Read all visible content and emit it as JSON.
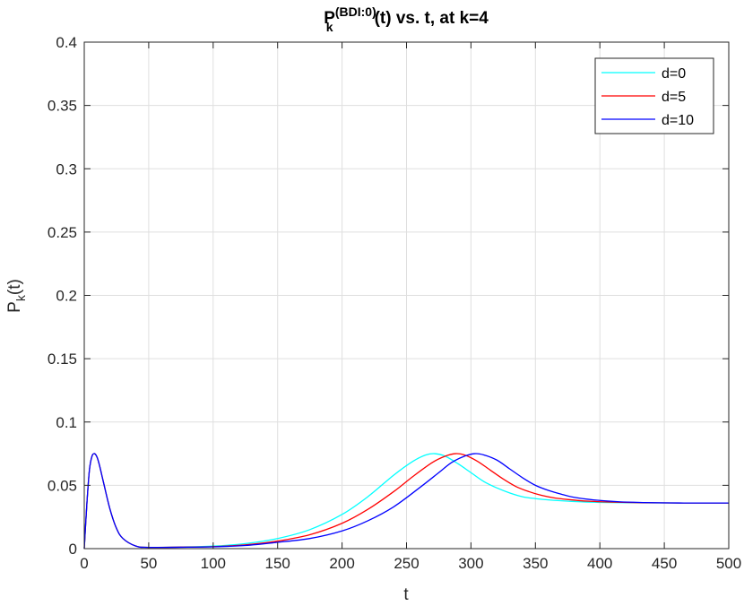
{
  "chart_data": {
    "type": "line",
    "title": {
      "main": "P",
      "sup": "(BDI:0)",
      "sub": "k",
      "rest": "(t) vs. t, at k=4"
    },
    "xlabel": "t",
    "ylabel": {
      "main": "P",
      "sub": "k",
      "rest": "(t)"
    },
    "xlim": [
      0,
      500
    ],
    "ylim": [
      0,
      0.4
    ],
    "xticks": [
      0,
      50,
      100,
      150,
      200,
      250,
      300,
      350,
      400,
      450,
      500
    ],
    "xtick_labels": [
      "0",
      "50",
      "100",
      "150",
      "200",
      "250",
      "300",
      "350",
      "400",
      "450",
      "500"
    ],
    "yticks": [
      0,
      0.05,
      0.1,
      0.15,
      0.2,
      0.25,
      0.3,
      0.35,
      0.4
    ],
    "ytick_labels": [
      "0",
      "0.05",
      "0.1",
      "0.15",
      "0.2",
      "0.25",
      "0.3",
      "0.35",
      "0.4"
    ],
    "grid": true,
    "legend_position": "top-right",
    "colors": {
      "axis": "#262626",
      "grid": "#dfdfdf"
    },
    "series": [
      {
        "name": "d=0",
        "color": "#00ffff",
        "x": [
          0,
          2,
          4,
          6,
          8,
          10,
          12,
          15,
          20,
          25,
          30,
          40,
          50,
          75,
          100,
          125,
          150,
          175,
          200,
          220,
          240,
          255,
          265,
          272,
          280,
          290,
          300,
          310,
          320,
          330,
          340,
          350,
          360,
          380,
          400,
          425,
          450,
          475,
          500
        ],
        "y": [
          0,
          0.035,
          0.062,
          0.073,
          0.075,
          0.072,
          0.065,
          0.052,
          0.031,
          0.016,
          0.008,
          0.002,
          0.001,
          0.0013,
          0.002,
          0.004,
          0.008,
          0.015,
          0.027,
          0.041,
          0.058,
          0.069,
          0.074,
          0.075,
          0.073,
          0.067,
          0.06,
          0.053,
          0.048,
          0.044,
          0.041,
          0.0395,
          0.0385,
          0.0372,
          0.0365,
          0.0362,
          0.0361,
          0.036,
          0.036
        ]
      },
      {
        "name": "d=5",
        "color": "#ff0000",
        "x": [
          0,
          2,
          4,
          6,
          8,
          10,
          12,
          15,
          20,
          25,
          30,
          40,
          50,
          75,
          100,
          125,
          150,
          175,
          200,
          220,
          240,
          255,
          270,
          280,
          288,
          295,
          305,
          315,
          325,
          335,
          345,
          355,
          365,
          375,
          390,
          410,
          430,
          450,
          475,
          500
        ],
        "y": [
          0,
          0.035,
          0.062,
          0.073,
          0.075,
          0.072,
          0.065,
          0.052,
          0.031,
          0.016,
          0.008,
          0.002,
          0.001,
          0.0012,
          0.0016,
          0.003,
          0.006,
          0.011,
          0.02,
          0.031,
          0.045,
          0.057,
          0.068,
          0.073,
          0.075,
          0.074,
          0.069,
          0.062,
          0.055,
          0.049,
          0.045,
          0.042,
          0.04,
          0.0388,
          0.0375,
          0.0367,
          0.0363,
          0.0361,
          0.036,
          0.036
        ]
      },
      {
        "name": "d=10",
        "color": "#0000ff",
        "x": [
          0,
          2,
          4,
          6,
          8,
          10,
          12,
          15,
          20,
          25,
          30,
          40,
          50,
          75,
          100,
          125,
          150,
          175,
          200,
          220,
          240,
          260,
          275,
          285,
          295,
          303,
          310,
          320,
          330,
          340,
          350,
          360,
          370,
          380,
          395,
          415,
          435,
          455,
          475,
          500
        ],
        "y": [
          0,
          0.035,
          0.062,
          0.073,
          0.075,
          0.072,
          0.065,
          0.052,
          0.031,
          0.016,
          0.008,
          0.002,
          0.001,
          0.0011,
          0.0014,
          0.0025,
          0.005,
          0.008,
          0.014,
          0.022,
          0.033,
          0.048,
          0.06,
          0.068,
          0.073,
          0.075,
          0.074,
          0.07,
          0.063,
          0.056,
          0.05,
          0.046,
          0.043,
          0.0405,
          0.0385,
          0.037,
          0.0364,
          0.0361,
          0.036,
          0.036
        ]
      }
    ]
  }
}
